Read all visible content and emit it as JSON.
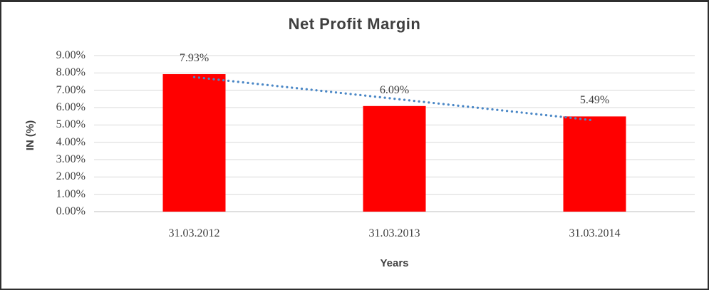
{
  "frame": {
    "background": "#ffffff",
    "border_color": "#2f2f2f"
  },
  "chart_data": {
    "type": "bar",
    "title": "Net Profit Margin",
    "categories": [
      "31.03.2012",
      "31.03.2013",
      "31.03.2014"
    ],
    "values": [
      7.93,
      6.09,
      5.49
    ],
    "value_labels": [
      "7.93%",
      "6.09%",
      "5.49%"
    ],
    "xlabel": "Years",
    "ylabel": "IN (%)",
    "ylim": [
      0,
      9
    ],
    "y_tick_values": [
      0,
      1,
      2,
      3,
      4,
      5,
      6,
      7,
      8,
      9
    ],
    "y_tick_labels": [
      "0.00%",
      "1.00%",
      "2.00%",
      "3.00%",
      "4.00%",
      "5.00%",
      "6.00%",
      "7.00%",
      "8.00%",
      "9.00%"
    ],
    "grid": true,
    "legend": "none",
    "bar_color": "#FF0000",
    "gridline_color": "#D9D9D9",
    "axis_line_color": "#BFBFBF",
    "text_color": "#404040",
    "trendline": {
      "style": "dotted",
      "color": "#4A87C6",
      "start_value": 7.76,
      "end_value": 5.26
    }
  }
}
